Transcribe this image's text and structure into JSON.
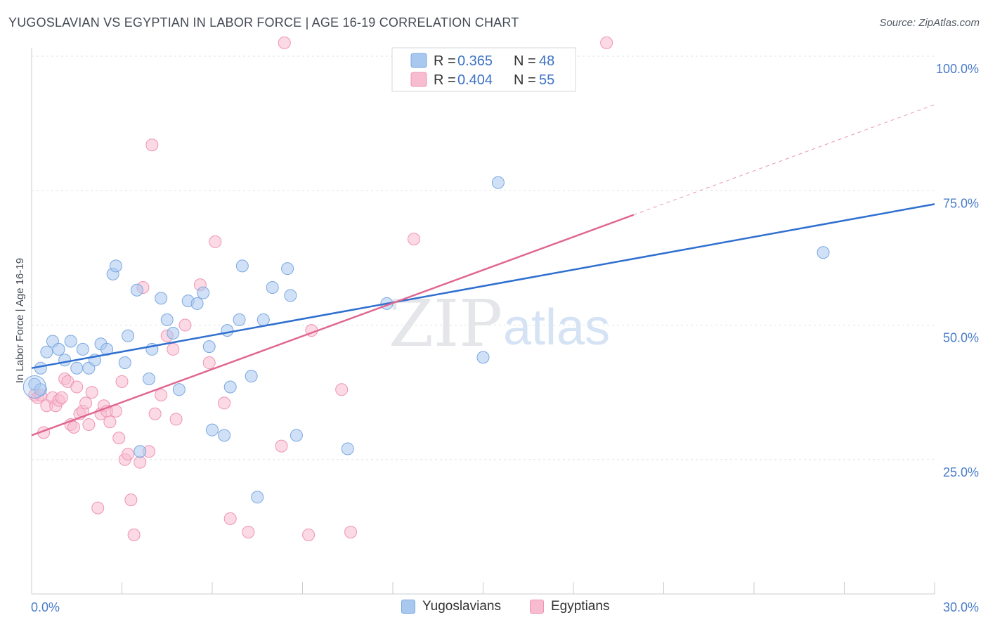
{
  "title": "YUGOSLAVIAN VS EGYPTIAN IN LABOR FORCE | AGE 16-19 CORRELATION CHART",
  "source": "Source: ZipAtlas.com",
  "watermark": {
    "zip": "ZIP",
    "atlas": "atlas"
  },
  "legend": {
    "rows": [
      {
        "r_label": "R = ",
        "r_value": "0.365",
        "n_label": "N = ",
        "n_value": "48"
      },
      {
        "r_label": "R = ",
        "r_value": "0.404",
        "n_label": "N = ",
        "n_value": "55"
      }
    ]
  },
  "bottom_legend": {
    "series1": "Yugoslavians",
    "series2": "Egyptians"
  },
  "colors": {
    "yugo_fill": "#a9c8f0",
    "yugo_stroke": "#7aa8e0",
    "yugo_line": "#2f6fcf",
    "egypt_fill": "#f7bcd0",
    "egypt_stroke": "#ef94b4",
    "egypt_line": "#e0678f",
    "tick_text": "#4a7cc9"
  },
  "chart_data": {
    "type": "scatter",
    "title": "YUGOSLAVIAN VS EGYPTIAN IN LABOR FORCE | AGE 16-19 CORRELATION CHART",
    "xlabel": "",
    "ylabel": "In Labor Force | Age 16-19",
    "xlim": [
      0,
      30
    ],
    "ylim": [
      0,
      100
    ],
    "x_tick_labels": [
      "0.0%",
      "30.0%"
    ],
    "y_ticks": [
      25,
      50,
      75,
      100
    ],
    "y_tick_labels": [
      "25.0%",
      "50.0%",
      "75.0%",
      "100.0%"
    ],
    "grid": "horizontal dashed",
    "series": [
      {
        "name": "Yugoslavians",
        "R": 0.365,
        "N": 48,
        "trend": {
          "x": [
            0,
            30
          ],
          "y": [
            42.0,
            72.5
          ],
          "dashed_extension": false
        },
        "points": [
          [
            0.1,
            39.0
          ],
          [
            0.3,
            38.0
          ],
          [
            0.3,
            42.0
          ],
          [
            0.5,
            45.0
          ],
          [
            0.7,
            47.0
          ],
          [
            0.9,
            45.5
          ],
          [
            1.1,
            43.5
          ],
          [
            1.3,
            47.0
          ],
          [
            1.5,
            42.0
          ],
          [
            1.7,
            45.5
          ],
          [
            1.9,
            42.0
          ],
          [
            2.1,
            43.5
          ],
          [
            2.3,
            46.5
          ],
          [
            2.5,
            45.5
          ],
          [
            2.7,
            59.5
          ],
          [
            2.8,
            61.0
          ],
          [
            3.1,
            43.0
          ],
          [
            3.2,
            48.0
          ],
          [
            3.5,
            56.5
          ],
          [
            3.6,
            26.5
          ],
          [
            3.9,
            40.0
          ],
          [
            4.0,
            45.5
          ],
          [
            4.3,
            55.0
          ],
          [
            4.5,
            51.0
          ],
          [
            4.7,
            48.5
          ],
          [
            4.9,
            38.0
          ],
          [
            5.2,
            54.5
          ],
          [
            5.5,
            54.0
          ],
          [
            5.7,
            56.0
          ],
          [
            5.9,
            46.0
          ],
          [
            6.0,
            30.5
          ],
          [
            6.4,
            29.5
          ],
          [
            6.5,
            49.0
          ],
          [
            6.6,
            38.5
          ],
          [
            6.9,
            51.0
          ],
          [
            7.0,
            61.0
          ],
          [
            7.3,
            40.5
          ],
          [
            7.5,
            18.0
          ],
          [
            7.7,
            51.0
          ],
          [
            8.0,
            57.0
          ],
          [
            8.5,
            60.5
          ],
          [
            8.6,
            55.5
          ],
          [
            8.8,
            29.5
          ],
          [
            10.5,
            27.0
          ],
          [
            11.8,
            54.0
          ],
          [
            15.0,
            44.0
          ],
          [
            15.5,
            76.5
          ],
          [
            26.3,
            63.5
          ]
        ]
      },
      {
        "name": "Egyptians",
        "R": 0.404,
        "N": 55,
        "trend": {
          "x": [
            0,
            20
          ],
          "y": [
            29.5,
            70.5
          ],
          "dashed_extension_to": [
            30,
            91.0
          ]
        },
        "points": [
          [
            0.1,
            37.0
          ],
          [
            0.2,
            36.5
          ],
          [
            0.3,
            37.0
          ],
          [
            0.4,
            30.0
          ],
          [
            0.5,
            35.0
          ],
          [
            0.7,
            36.5
          ],
          [
            0.8,
            35.0
          ],
          [
            0.9,
            36.0
          ],
          [
            1.0,
            36.5
          ],
          [
            1.1,
            40.0
          ],
          [
            1.2,
            39.5
          ],
          [
            1.3,
            31.5
          ],
          [
            1.4,
            31.0
          ],
          [
            1.5,
            38.5
          ],
          [
            1.6,
            33.5
          ],
          [
            1.7,
            34.0
          ],
          [
            1.8,
            35.5
          ],
          [
            1.9,
            31.5
          ],
          [
            2.0,
            37.5
          ],
          [
            2.2,
            16.0
          ],
          [
            2.3,
            33.5
          ],
          [
            2.4,
            35.0
          ],
          [
            2.5,
            34.0
          ],
          [
            2.6,
            32.0
          ],
          [
            2.8,
            34.0
          ],
          [
            2.9,
            29.0
          ],
          [
            3.0,
            39.5
          ],
          [
            3.1,
            25.0
          ],
          [
            3.2,
            26.0
          ],
          [
            3.3,
            17.5
          ],
          [
            3.4,
            11.0
          ],
          [
            3.6,
            24.5
          ],
          [
            3.7,
            57.0
          ],
          [
            3.9,
            26.5
          ],
          [
            4.0,
            83.5
          ],
          [
            4.1,
            33.5
          ],
          [
            4.3,
            37.0
          ],
          [
            4.5,
            48.0
          ],
          [
            4.7,
            45.5
          ],
          [
            4.8,
            32.5
          ],
          [
            5.1,
            50.0
          ],
          [
            5.6,
            57.5
          ],
          [
            5.9,
            43.0
          ],
          [
            6.1,
            65.5
          ],
          [
            6.4,
            35.5
          ],
          [
            6.6,
            14.0
          ],
          [
            7.2,
            11.5
          ],
          [
            8.3,
            27.5
          ],
          [
            8.4,
            102.5
          ],
          [
            9.2,
            11.0
          ],
          [
            9.3,
            49.0
          ],
          [
            10.3,
            38.0
          ],
          [
            10.6,
            11.5
          ],
          [
            12.7,
            66.0
          ],
          [
            19.1,
            102.5
          ]
        ]
      }
    ]
  }
}
